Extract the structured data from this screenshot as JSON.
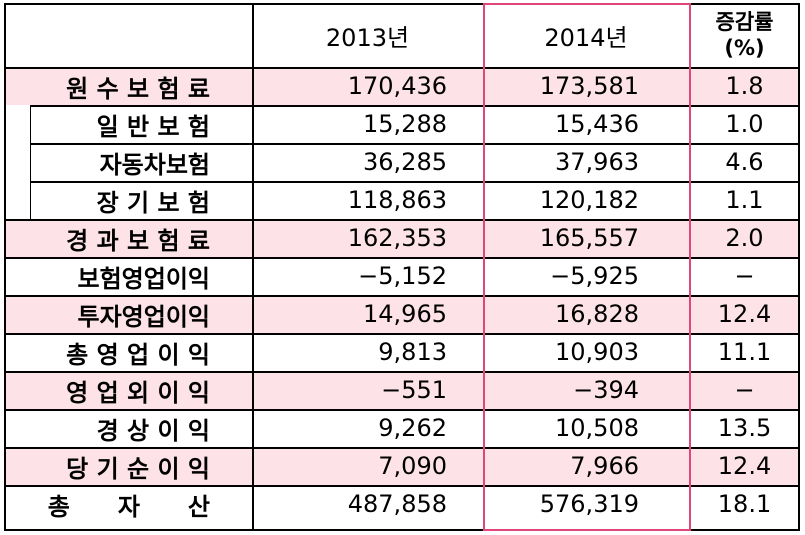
{
  "header": {
    "col_2013": "2013년",
    "col_2014": "2014년",
    "col_rate_line1": "증감률",
    "col_rate_line2": "(%)"
  },
  "rows": [
    {
      "label": "원 수 보 험 료",
      "y2013": "170,436",
      "y2014": "173,581",
      "rate": "1.8",
      "highlight": true,
      "sub": false
    },
    {
      "label": "일 반 보 험",
      "y2013": "15,288",
      "y2014": "15,436",
      "rate": "1.0",
      "highlight": false,
      "sub": true
    },
    {
      "label": "자동차보험",
      "y2013": "36,285",
      "y2014": "37,963",
      "rate": "4.6",
      "highlight": false,
      "sub": true
    },
    {
      "label": "장 기 보 험",
      "y2013": "118,863",
      "y2014": "120,182",
      "rate": "1.1",
      "highlight": false,
      "sub": true
    },
    {
      "label": "경 과 보 험 료",
      "y2013": "162,353",
      "y2014": "165,557",
      "rate": "2.0",
      "highlight": true,
      "sub": false
    },
    {
      "label": "보험영업이익",
      "y2013": "−5,152",
      "y2014": "−5,925",
      "rate": "−",
      "highlight": false,
      "sub": false
    },
    {
      "label": "투자영업이익",
      "y2013": "14,965",
      "y2014": "16,828",
      "rate": "12.4",
      "highlight": true,
      "sub": false
    },
    {
      "label": "총 영 업 이 익",
      "y2013": "9,813",
      "y2014": "10,903",
      "rate": "11.1",
      "highlight": false,
      "sub": false
    },
    {
      "label": "영 업 외 이 익",
      "y2013": "−551",
      "y2014": "−394",
      "rate": "−",
      "highlight": true,
      "sub": false
    },
    {
      "label": "경 상 이 익",
      "y2013": "9,262",
      "y2014": "10,508",
      "rate": "13.5",
      "highlight": false,
      "sub": false
    },
    {
      "label": "당 기 순 이 익",
      "y2013": "7,090",
      "y2014": "7,966",
      "rate": "12.4",
      "highlight": true,
      "sub": false
    },
    {
      "label": "총　　자　　산",
      "y2013": "487,858",
      "y2014": "576,319",
      "rate": "18.1",
      "highlight": false,
      "sub": false
    }
  ],
  "colors": {
    "highlight_bg": "#fde3e8",
    "box_border": "#e0457b"
  }
}
